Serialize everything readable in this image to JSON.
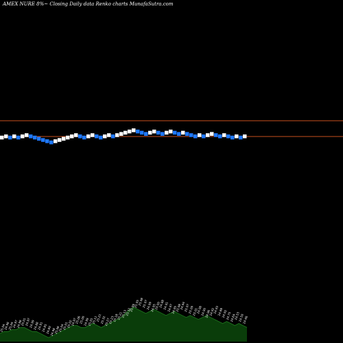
{
  "header": {
    "title": "AMEX  NURE 8%~  Closing Daily data  Renko  charts MunafaSutra.com"
  },
  "chart_data": {
    "type": "renko",
    "title": "AMEX  NURE 8%~  Closing Daily data  Renko  charts MunafaSutra.com",
    "box_size": 0.01,
    "y_range": [
      24.46,
      25.32
    ],
    "reference_lines": [
      25.11,
      24.98
    ],
    "colors": {
      "background": "#000000",
      "up_brick": "#ffffff",
      "down_brick": "#1e78ff",
      "reference_line": "#c8501e",
      "volume_fill": "#0a3d0a",
      "volume_line": "#1e7a1e"
    },
    "bricks": [
      {
        "dir": "up",
        "value": 24.97
      },
      {
        "dir": "up",
        "value": 24.98
      },
      {
        "dir": "down",
        "value": 24.97
      },
      {
        "dir": "up",
        "value": 24.98
      },
      {
        "dir": "down",
        "value": 24.97
      },
      {
        "dir": "up",
        "value": 24.98
      },
      {
        "dir": "up",
        "value": 24.99
      },
      {
        "dir": "down",
        "value": 24.98
      },
      {
        "dir": "down",
        "value": 24.97
      },
      {
        "dir": "down",
        "value": 24.96
      },
      {
        "dir": "down",
        "value": 24.95
      },
      {
        "dir": "down",
        "value": 24.94
      },
      {
        "dir": "down",
        "value": 24.93
      },
      {
        "dir": "up",
        "value": 24.94
      },
      {
        "dir": "up",
        "value": 24.95
      },
      {
        "dir": "up",
        "value": 24.96
      },
      {
        "dir": "up",
        "value": 24.97
      },
      {
        "dir": "up",
        "value": 24.98
      },
      {
        "dir": "up",
        "value": 24.99
      },
      {
        "dir": "down",
        "value": 24.98
      },
      {
        "dir": "down",
        "value": 24.97
      },
      {
        "dir": "up",
        "value": 24.98
      },
      {
        "dir": "up",
        "value": 24.99
      },
      {
        "dir": "down",
        "value": 24.98
      },
      {
        "dir": "down",
        "value": 24.97
      },
      {
        "dir": "up",
        "value": 24.98
      },
      {
        "dir": "up",
        "value": 24.99
      },
      {
        "dir": "down",
        "value": 24.98
      },
      {
        "dir": "up",
        "value": 24.99
      },
      {
        "dir": "up",
        "value": 25.0
      },
      {
        "dir": "up",
        "value": 25.01
      },
      {
        "dir": "up",
        "value": 25.02
      },
      {
        "dir": "up",
        "value": 25.03
      },
      {
        "dir": "down",
        "value": 25.02
      },
      {
        "dir": "down",
        "value": 25.01
      },
      {
        "dir": "down",
        "value": 25.0
      },
      {
        "dir": "up",
        "value": 25.01
      },
      {
        "dir": "up",
        "value": 25.02
      },
      {
        "dir": "down",
        "value": 25.01
      },
      {
        "dir": "down",
        "value": 25.0
      },
      {
        "dir": "up",
        "value": 25.01
      },
      {
        "dir": "up",
        "value": 25.02
      },
      {
        "dir": "down",
        "value": 25.01
      },
      {
        "dir": "down",
        "value": 25.0
      },
      {
        "dir": "up",
        "value": 25.01
      },
      {
        "dir": "down",
        "value": 25.0
      },
      {
        "dir": "down",
        "value": 24.99
      },
      {
        "dir": "down",
        "value": 24.98
      },
      {
        "dir": "up",
        "value": 24.99
      },
      {
        "dir": "down",
        "value": 24.98
      },
      {
        "dir": "up",
        "value": 24.99
      },
      {
        "dir": "up",
        "value": 25.0
      },
      {
        "dir": "down",
        "value": 24.99
      },
      {
        "dir": "down",
        "value": 24.98
      },
      {
        "dir": "up",
        "value": 24.99
      },
      {
        "dir": "down",
        "value": 24.98
      },
      {
        "dir": "down",
        "value": 24.97
      },
      {
        "dir": "up",
        "value": 24.98
      },
      {
        "dir": "down",
        "value": 24.97
      },
      {
        "dir": "up",
        "value": 24.98
      }
    ],
    "volume": [
      4,
      5,
      5,
      6,
      6,
      7,
      7,
      6,
      5,
      5,
      4,
      3,
      2,
      3,
      4,
      5,
      6,
      7,
      8,
      8,
      7,
      7,
      8,
      9,
      8,
      7,
      8,
      9,
      10,
      11,
      12,
      14,
      16,
      17,
      16,
      15,
      14,
      15,
      16,
      15,
      14,
      13,
      14,
      15,
      14,
      13,
      12,
      13,
      12,
      11,
      12,
      13,
      12,
      11,
      10,
      9,
      10,
      9,
      8,
      9,
      8,
      7
    ],
    "volume_labels": [
      "25.04",
      "24.98",
      "25.04",
      "24.97",
      "24.98",
      "25.01",
      "24.97",
      "24.99",
      "24.88",
      "24.91",
      "24.85",
      "24.89",
      "24.98",
      "25.06",
      "25.04",
      "25.01",
      "25.02",
      "24.97",
      "25.06",
      "25.00",
      "24.99",
      "25.01",
      "25.11",
      "25.21",
      "25.32",
      "25.27",
      "25.23",
      "25.18",
      "25.21",
      "25.13",
      "25.12",
      "25.09",
      "25.05",
      "25.08",
      "25.07",
      "24.99",
      "24.95",
      "25.00",
      "24.88",
      "24.91",
      "24.97",
      "24.95",
      "25.08",
      "24.94",
      "25.07",
      "25.09",
      "25.01",
      "24.98",
      "24.90",
      "24.96",
      "24.92",
      "24.93",
      "24.88",
      "24.92",
      "24.75",
      "24.64",
      "24.53",
      "24.50",
      "24.46"
    ]
  }
}
